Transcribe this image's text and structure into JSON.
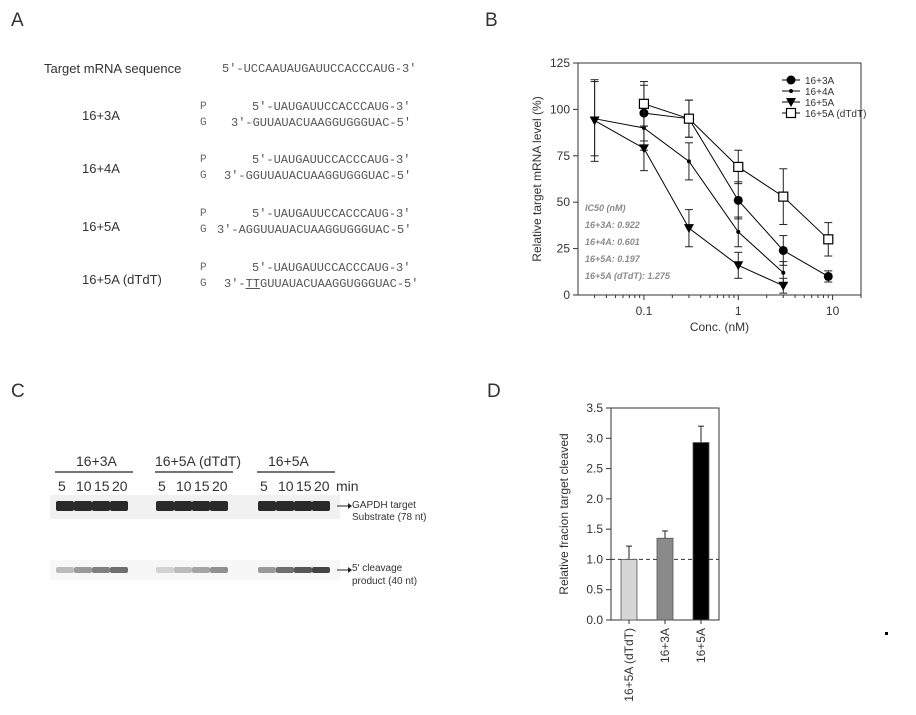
{
  "panels": {
    "a": "A",
    "b": "B",
    "c": "C",
    "d": "D"
  },
  "panel_a": {
    "target_label": "Target mRNA sequence",
    "target_seq": "5′-UCCAAUAUGAUUCCACCCAUG-3′",
    "pairs": [
      {
        "name": "16+3A",
        "p_label": "P",
        "g_label": "G",
        "p_seq": "5′-UAUGAUUCCACCCAUG-3′",
        "g_seq": "3′-GUUAUACUAAGGUGGGUAC-5′"
      },
      {
        "name": "16+4A",
        "p_label": "P",
        "g_label": "G",
        "p_seq": "5′-UAUGAUUCCACCCAUG-3′",
        "g_seq": "3′-GGUUAUACUAAGGUGGGUAC-5′"
      },
      {
        "name": "16+5A",
        "p_label": "P",
        "g_label": "G",
        "p_seq": "5′-UAUGAUUCCACCCAUG-3′",
        "g_seq": "3′-AGGUUAUACUAAGGUGGGUAC-5′"
      },
      {
        "name": "16+5A (dTdT)",
        "p_label": "P",
        "g_label": "G",
        "p_seq": "5′-UAUGAUUCCACCCAUG-3′",
        "g_seq_prefix": "3′-",
        "g_seq_underlined": "TT",
        "g_seq_rest": "GUUAUACUAAGGUGGGUAC-5′"
      }
    ]
  },
  "panel_b": {
    "ic50_title": "IC50 (nM)",
    "ic50_lines": [
      "16+3A: 0.922",
      "16+4A: 0.601",
      "16+5A: 0.197",
      "16+5A (dTdT): 1.275"
    ]
  },
  "panel_c": {
    "groups": [
      "16+3A",
      "16+5A (dTdT)",
      "16+5A"
    ],
    "times": [
      "5",
      "10",
      "15",
      "20"
    ],
    "time_unit": "min",
    "band1_label_line1": "GAPDH target",
    "band1_label_line2": "Substrate (78 nt)",
    "band2_label_line1": "5′ cleavage",
    "band2_label_line2": "product (40 nt)",
    "product_intensity": [
      [
        0.25,
        0.45,
        0.6,
        0.7
      ],
      [
        0.12,
        0.25,
        0.38,
        0.5
      ],
      [
        0.45,
        0.7,
        0.85,
        0.95
      ]
    ]
  },
  "chart_data": [
    {
      "type": "line",
      "xlabel": "Conc. (nM)",
      "ylabel": "Relative target mRNA level (%)",
      "x_scale": "log",
      "xlim": [
        0.02,
        20
      ],
      "ylim": [
        0,
        125
      ],
      "xticks": [
        0.1,
        1,
        10
      ],
      "xtick_labels": [
        "0.1",
        "1",
        "10"
      ],
      "yticks": [
        0,
        25,
        50,
        75,
        100,
        125
      ],
      "legend_position": "top-right",
      "series": [
        {
          "name": "16+3A",
          "marker": "circle-filled",
          "x": [
            0.1,
            0.3,
            1,
            3,
            9
          ],
          "y": [
            98,
            95,
            51,
            24,
            10
          ],
          "err": [
            15,
            10,
            10,
            8,
            3
          ]
        },
        {
          "name": "16+4A",
          "marker": "dot",
          "x": [
            0.03,
            0.1,
            0.3,
            1,
            3
          ],
          "y": [
            95,
            90,
            72,
            34,
            12
          ],
          "err": [
            20,
            12,
            10,
            8,
            6
          ]
        },
        {
          "name": "16+5A",
          "marker": "triangle-down-filled",
          "x": [
            0.03,
            0.1,
            0.3,
            1,
            3
          ],
          "y": [
            94,
            79,
            36,
            16,
            5
          ],
          "err": [
            22,
            12,
            10,
            7,
            4
          ]
        },
        {
          "name": "16+5A (dTdT)",
          "marker": "square-open",
          "x": [
            0.1,
            0.3,
            1,
            3,
            9
          ],
          "y": [
            103,
            95,
            69,
            53,
            30
          ],
          "err": [
            12,
            10,
            9,
            15,
            9
          ]
        }
      ]
    },
    {
      "type": "bar",
      "ylabel": "Relative fracion target cleaved",
      "categories": [
        "16+5A (dTdT)",
        "16+3A",
        "16+5A"
      ],
      "values": [
        1.0,
        1.35,
        2.93
      ],
      "errors": [
        0.22,
        0.12,
        0.27
      ],
      "colors": [
        "#d6d6d6",
        "#8a8a8a",
        "#000000"
      ],
      "ylim": [
        0,
        3.5
      ],
      "yticks": [
        "0.0",
        "0.5",
        "1.0",
        "1.5",
        "2.0",
        "2.5",
        "3.0",
        "3.5"
      ],
      "reference_line": 1.0
    }
  ]
}
